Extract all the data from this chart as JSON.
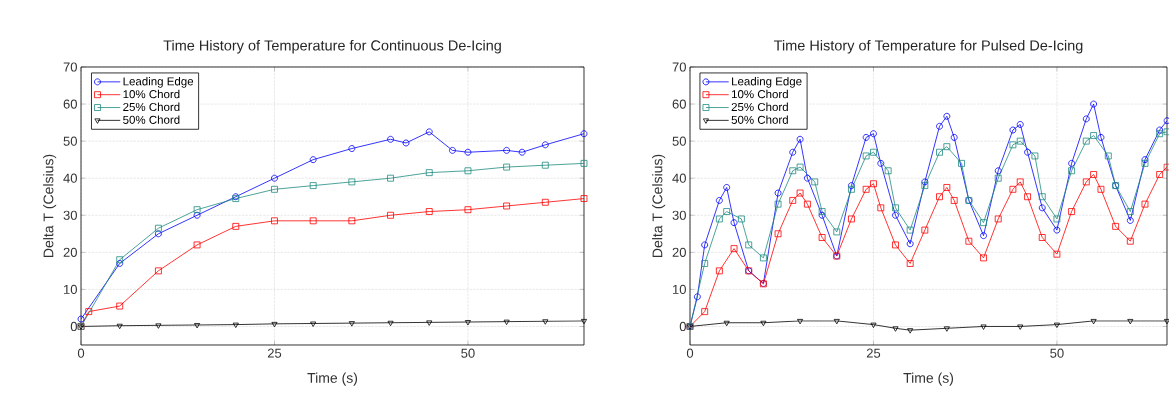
{
  "chart_data": [
    {
      "type": "line",
      "title": "Time History of Temperature for Continuous De-Icing",
      "xlabel": "Time (s)",
      "ylabel": "Delta T (Celsius)",
      "xlim": [
        0,
        65
      ],
      "ylim": [
        -5,
        70
      ],
      "xticks": [
        0,
        25,
        50
      ],
      "yticks": [
        0,
        10,
        20,
        30,
        40,
        50,
        60,
        70
      ],
      "grid": true,
      "legend": "top left",
      "line_style": "solid",
      "series": [
        {
          "name": "Leading Edge",
          "color": "#0000ff",
          "marker": "circle",
          "x": [
            0,
            5,
            10,
            15,
            20,
            25,
            30,
            35,
            40,
            42,
            45,
            48,
            50,
            55,
            57,
            60,
            65
          ],
          "values": [
            2,
            17,
            25,
            30,
            35,
            40,
            45,
            48,
            50.5,
            49.5,
            52.5,
            47.5,
            47,
            47.5,
            47,
            49,
            52
          ]
        },
        {
          "name": "10% Chord",
          "color": "#ff0000",
          "marker": "square",
          "x": [
            0,
            1,
            5,
            10,
            15,
            20,
            25,
            30,
            35,
            40,
            45,
            50,
            55,
            60,
            65
          ],
          "values": [
            0,
            4,
            5.5,
            15,
            22,
            27,
            28.5,
            28.5,
            28.5,
            30,
            31,
            31.5,
            32.5,
            33.5,
            34.5
          ]
        },
        {
          "name": "25% Chord",
          "color": "#1f8c80",
          "marker": "square",
          "x": [
            0,
            5,
            10,
            15,
            20,
            25,
            30,
            35,
            40,
            45,
            50,
            55,
            60,
            65
          ],
          "values": [
            0,
            18,
            26.5,
            31.5,
            34.5,
            37,
            38,
            39,
            40,
            41.5,
            42,
            43,
            43.5,
            44
          ]
        },
        {
          "name": "50% Chord",
          "color": "#000000",
          "marker": "triangle",
          "x": [
            0,
            5,
            10,
            15,
            20,
            25,
            30,
            35,
            40,
            45,
            50,
            55,
            60,
            65
          ],
          "values": [
            0,
            0.2,
            0.3,
            0.4,
            0.5,
            0.7,
            0.8,
            0.9,
            1,
            1.1,
            1.2,
            1.3,
            1.4,
            1.5
          ]
        }
      ]
    },
    {
      "type": "line",
      "title": "Time History of Temperature for Pulsed De-Icing",
      "xlabel": "Time (s)",
      "ylabel": "Delta T (Celsius)",
      "xlim": [
        0,
        65
      ],
      "ylim": [
        -5,
        70
      ],
      "xticks": [
        0,
        25,
        50
      ],
      "yticks": [
        0,
        10,
        20,
        30,
        40,
        50,
        60,
        70
      ],
      "grid": true,
      "legend": "top left",
      "line_style": "solid",
      "series": [
        {
          "name": "Leading Edge",
          "color": "#0000ff",
          "marker": "circle",
          "x": [
            0,
            1,
            2,
            4,
            5,
            6,
            8,
            10,
            12,
            14,
            15,
            16,
            18,
            20,
            22,
            24,
            25,
            26,
            28,
            30,
            32,
            34,
            35,
            36,
            38,
            40,
            42,
            44,
            45,
            46,
            48,
            50,
            52,
            54,
            55,
            56,
            58,
            60,
            62,
            64,
            65
          ],
          "values": [
            0,
            8,
            22,
            34,
            37.5,
            28,
            15,
            11.6,
            36,
            47,
            50.5,
            40,
            30,
            19,
            38,
            51,
            52,
            44,
            30,
            22.3,
            39,
            54,
            56.7,
            51,
            34,
            24.5,
            42,
            53,
            54.5,
            47,
            32,
            26,
            44,
            56,
            60,
            51,
            38,
            28.6,
            45,
            53,
            55.5
          ]
        },
        {
          "name": "10% Chord",
          "color": "#ff0000",
          "marker": "square",
          "x": [
            0,
            2,
            4,
            6,
            8,
            10,
            12,
            14,
            15,
            16,
            18,
            20,
            22,
            24,
            25,
            26,
            28,
            30,
            32,
            34,
            35,
            36,
            38,
            40,
            42,
            44,
            45,
            46,
            48,
            50,
            52,
            54,
            55,
            56,
            58,
            60,
            62,
            64,
            65
          ],
          "values": [
            0,
            4,
            15,
            21,
            15,
            11.5,
            25,
            34,
            36,
            33,
            24,
            19,
            29,
            37,
            38.5,
            32,
            22,
            17,
            26,
            35,
            37.5,
            34,
            23,
            18.5,
            29,
            37,
            39,
            35,
            24,
            19.5,
            31,
            39,
            41,
            37,
            27,
            23,
            33,
            41,
            43
          ]
        },
        {
          "name": "25% Chord",
          "color": "#1f8c80",
          "marker": "square",
          "x": [
            0,
            2,
            4,
            5,
            7,
            8,
            10,
            12,
            14,
            15,
            17,
            18,
            20,
            22,
            24,
            25,
            27,
            28,
            30,
            32,
            34,
            35,
            37,
            38,
            40,
            42,
            44,
            45,
            47,
            48,
            50,
            52,
            54,
            55,
            57,
            58,
            60,
            62,
            64,
            65
          ],
          "values": [
            0,
            17,
            29,
            31,
            29,
            22,
            18.5,
            33,
            42,
            43,
            39,
            31,
            25.5,
            37,
            46,
            47,
            42,
            32,
            26,
            38,
            47,
            48.5,
            44,
            34,
            28,
            40,
            49,
            50,
            46,
            35,
            29,
            42,
            50,
            51.5,
            46,
            38,
            31,
            44,
            52,
            52.5
          ]
        },
        {
          "name": "50% Chord",
          "color": "#000000",
          "marker": "triangle",
          "x": [
            0,
            5,
            10,
            15,
            20,
            25,
            28,
            30,
            35,
            40,
            45,
            50,
            55,
            60,
            65
          ],
          "values": [
            0,
            1,
            1,
            1.5,
            1.5,
            0.5,
            -0.5,
            -1,
            -0.5,
            0,
            0,
            0.5,
            1.5,
            1.5,
            1.5
          ]
        }
      ]
    }
  ]
}
